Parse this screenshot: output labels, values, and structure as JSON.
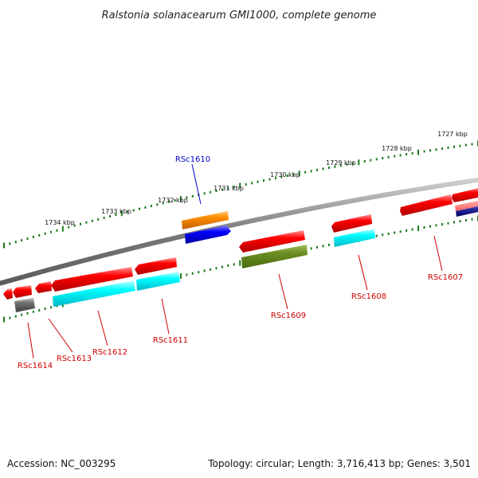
{
  "title": "Ralstonia solanacearum GMI1000, complete genome",
  "footer": {
    "accession": "Accession: NC_003295",
    "summary": "Topology: circular; Length: 3,716,413 bp; Genes: 3,501"
  },
  "kbp_labels": [
    "1727 kbp",
    "1728 kbp",
    "1729 kbp",
    "1730 kbp",
    "1731 kbp",
    "1732 kbp",
    "1733 kbp",
    "1734 kbp"
  ],
  "gene_labels": [
    {
      "text": "RSc1610",
      "color": "#0000cc"
    },
    {
      "text": "RSc1607",
      "color": "#cc0000"
    },
    {
      "text": "RSc1608",
      "color": "#cc0000"
    },
    {
      "text": "RSc1609",
      "color": "#cc0000"
    },
    {
      "text": "RSc1611",
      "color": "#cc0000"
    },
    {
      "text": "RSc1612",
      "color": "#cc0000"
    },
    {
      "text": "RSc1613",
      "color": "#cc0000"
    },
    {
      "text": "RSc1614",
      "color": "#cc0000"
    }
  ],
  "colors": {
    "backbone": "#808080",
    "tick": "#1a7a1a",
    "cds_red": "#ff0000",
    "cyan": "#00ffff",
    "olive": "#6b8e23",
    "orange": "#ff8c00",
    "blue": "#0000ff",
    "gray": "#707070"
  }
}
